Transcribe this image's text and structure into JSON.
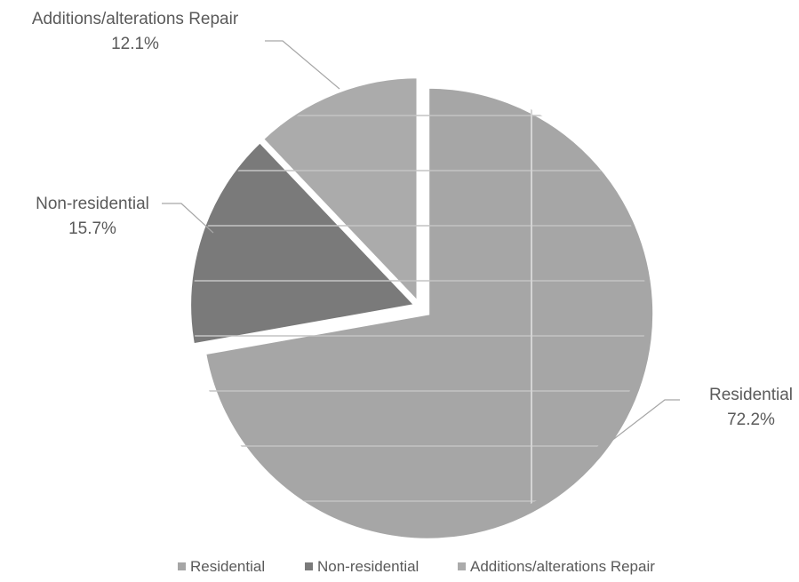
{
  "chart_data": {
    "type": "pie",
    "title": "",
    "slices": [
      {
        "name": "Residential",
        "value": 72.2,
        "label": "72.2%",
        "color": "#a6a6a6"
      },
      {
        "name": "Non-residential",
        "value": 15.7,
        "label": "15.7%",
        "color": "#7a7a7a"
      },
      {
        "name": "Additions/alterations Repair",
        "value": 12.1,
        "label": "12.1%",
        "color": "#ababab"
      }
    ],
    "legend": {
      "position": "bottom",
      "entries": [
        "Residential",
        "Non-residential",
        "Additions/alterations Repair"
      ]
    },
    "data_labels": "outside with leader lines",
    "exploded": true
  }
}
